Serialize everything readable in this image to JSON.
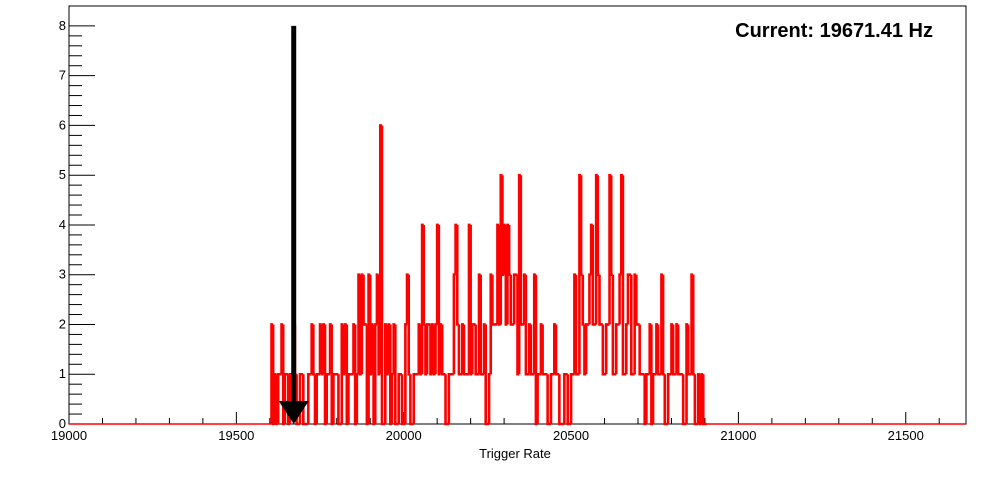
{
  "chart_data": {
    "type": "histogram",
    "title": "",
    "annotation": "Current: 19671.41 Hz",
    "xlabel": "Trigger Rate",
    "ylabel": "",
    "xlim": [
      19000,
      21680
    ],
    "ylim": [
      0,
      8.4
    ],
    "x_ticks": [
      19000,
      19500,
      20000,
      20500,
      21000,
      21500
    ],
    "y_ticks": [
      0,
      1,
      2,
      3,
      4,
      5,
      6,
      7,
      8
    ],
    "grid": false,
    "legend": "none",
    "line_color": "#ff0000",
    "arrow": {
      "x": 19671.41,
      "y_from": 8,
      "y_to": 0,
      "color": "#000000"
    },
    "bin_width": 5,
    "bins": [
      [
        19605,
        2
      ],
      [
        19610,
        0
      ],
      [
        19615,
        1
      ],
      [
        19620,
        0
      ],
      [
        19625,
        1
      ],
      [
        19635,
        2
      ],
      [
        19640,
        0
      ],
      [
        19645,
        1
      ],
      [
        19655,
        0
      ],
      [
        19660,
        1
      ],
      [
        19670,
        2
      ],
      [
        19675,
        1
      ],
      [
        19680,
        0
      ],
      [
        19690,
        1
      ],
      [
        19700,
        0
      ],
      [
        19715,
        1
      ],
      [
        19725,
        2
      ],
      [
        19730,
        1
      ],
      [
        19735,
        0
      ],
      [
        19740,
        1
      ],
      [
        19750,
        2
      ],
      [
        19755,
        1
      ],
      [
        19760,
        2
      ],
      [
        19765,
        0
      ],
      [
        19770,
        1
      ],
      [
        19780,
        2
      ],
      [
        19785,
        0
      ],
      [
        19790,
        1
      ],
      [
        19805,
        0
      ],
      [
        19815,
        2
      ],
      [
        19820,
        1
      ],
      [
        19825,
        2
      ],
      [
        19830,
        0
      ],
      [
        19835,
        1
      ],
      [
        19850,
        2
      ],
      [
        19855,
        0
      ],
      [
        19860,
        1
      ],
      [
        19865,
        3
      ],
      [
        19870,
        1
      ],
      [
        19875,
        3
      ],
      [
        19880,
        2
      ],
      [
        19890,
        0
      ],
      [
        19895,
        3
      ],
      [
        19900,
        1
      ],
      [
        19905,
        2
      ],
      [
        19910,
        0
      ],
      [
        19915,
        2
      ],
      [
        19920,
        3
      ],
      [
        19925,
        1
      ],
      [
        19930,
        6
      ],
      [
        19935,
        0
      ],
      [
        19945,
        2
      ],
      [
        19950,
        1
      ],
      [
        19955,
        2
      ],
      [
        19960,
        0
      ],
      [
        19965,
        1
      ],
      [
        19970,
        2
      ],
      [
        19975,
        0
      ],
      [
        19985,
        1
      ],
      [
        19995,
        0
      ],
      [
        20005,
        2
      ],
      [
        20010,
        3
      ],
      [
        20015,
        1
      ],
      [
        20020,
        0
      ],
      [
        20030,
        1
      ],
      [
        20045,
        2
      ],
      [
        20050,
        1
      ],
      [
        20055,
        4
      ],
      [
        20060,
        2
      ],
      [
        20065,
        1
      ],
      [
        20070,
        2
      ],
      [
        20080,
        1
      ],
      [
        20085,
        2
      ],
      [
        20090,
        1
      ],
      [
        20095,
        2
      ],
      [
        20100,
        4
      ],
      [
        20105,
        1
      ],
      [
        20110,
        2
      ],
      [
        20115,
        1
      ],
      [
        20125,
        0
      ],
      [
        20135,
        1
      ],
      [
        20150,
        3
      ],
      [
        20155,
        4
      ],
      [
        20160,
        2
      ],
      [
        20165,
        1
      ],
      [
        20175,
        2
      ],
      [
        20180,
        1
      ],
      [
        20195,
        4
      ],
      [
        20200,
        1
      ],
      [
        20205,
        2
      ],
      [
        20215,
        1
      ],
      [
        20225,
        3
      ],
      [
        20230,
        1
      ],
      [
        20240,
        2
      ],
      [
        20245,
        0
      ],
      [
        20255,
        1
      ],
      [
        20260,
        3
      ],
      [
        20265,
        2
      ],
      [
        20280,
        4
      ],
      [
        20285,
        2
      ],
      [
        20290,
        5
      ],
      [
        20295,
        3
      ],
      [
        20300,
        4
      ],
      [
        20305,
        2
      ],
      [
        20310,
        4
      ],
      [
        20315,
        3
      ],
      [
        20320,
        2
      ],
      [
        20330,
        3
      ],
      [
        20340,
        1
      ],
      [
        20345,
        5
      ],
      [
        20350,
        2
      ],
      [
        20360,
        3
      ],
      [
        20365,
        1
      ],
      [
        20375,
        2
      ],
      [
        20380,
        1
      ],
      [
        20390,
        3
      ],
      [
        20395,
        0
      ],
      [
        20400,
        1
      ],
      [
        20410,
        2
      ],
      [
        20415,
        1
      ],
      [
        20430,
        0
      ],
      [
        20440,
        1
      ],
      [
        20450,
        2
      ],
      [
        20455,
        1
      ],
      [
        20465,
        0
      ],
      [
        20480,
        1
      ],
      [
        20490,
        0
      ],
      [
        20500,
        1
      ],
      [
        20510,
        3
      ],
      [
        20515,
        1
      ],
      [
        20525,
        5
      ],
      [
        20530,
        3
      ],
      [
        20535,
        2
      ],
      [
        20540,
        1
      ],
      [
        20545,
        2
      ],
      [
        20555,
        3
      ],
      [
        20560,
        4
      ],
      [
        20565,
        2
      ],
      [
        20575,
        5
      ],
      [
        20580,
        3
      ],
      [
        20585,
        2
      ],
      [
        20595,
        1
      ],
      [
        20605,
        2
      ],
      [
        20615,
        5
      ],
      [
        20620,
        3
      ],
      [
        20625,
        1
      ],
      [
        20635,
        2
      ],
      [
        20645,
        3
      ],
      [
        20650,
        5
      ],
      [
        20655,
        1
      ],
      [
        20665,
        2
      ],
      [
        20670,
        3
      ],
      [
        20680,
        1
      ],
      [
        20690,
        3
      ],
      [
        20695,
        2
      ],
      [
        20705,
        1
      ],
      [
        20720,
        0
      ],
      [
        20725,
        1
      ],
      [
        20735,
        2
      ],
      [
        20740,
        0
      ],
      [
        20745,
        1
      ],
      [
        20755,
        2
      ],
      [
        20760,
        1
      ],
      [
        20770,
        3
      ],
      [
        20775,
        1
      ],
      [
        20780,
        0
      ],
      [
        20790,
        1
      ],
      [
        20800,
        2
      ],
      [
        20805,
        1
      ],
      [
        20815,
        2
      ],
      [
        20820,
        1
      ],
      [
        20835,
        0
      ],
      [
        20845,
        2
      ],
      [
        20850,
        1
      ],
      [
        20860,
        3
      ],
      [
        20865,
        1
      ],
      [
        20870,
        0
      ],
      [
        20880,
        1
      ],
      [
        20885,
        0
      ],
      [
        20890,
        1
      ],
      [
        20895,
        0
      ],
      [
        20900,
        0
      ]
    ]
  }
}
